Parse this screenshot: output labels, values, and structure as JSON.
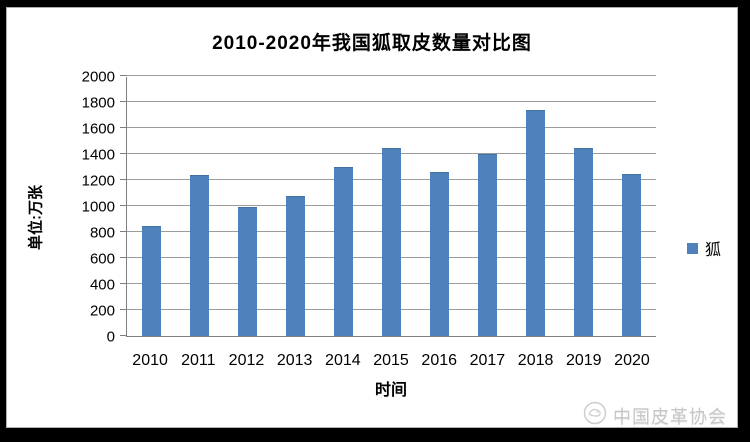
{
  "chart_data": {
    "type": "bar",
    "title": "2010-2020年我国狐取皮数量对比图",
    "xlabel": "时间",
    "ylabel": "单位:万张",
    "categories": [
      "2010",
      "2011",
      "2012",
      "2013",
      "2014",
      "2015",
      "2016",
      "2017",
      "2018",
      "2019",
      "2020"
    ],
    "series": [
      {
        "name": "狐",
        "values": [
          845,
          1240,
          990,
          1080,
          1300,
          1450,
          1265,
          1400,
          1735,
          1445,
          1250
        ]
      }
    ],
    "ylim": [
      0,
      2000
    ],
    "ytick_step": 200,
    "grid": true,
    "legend_position": "right",
    "bar_color": "#4f81bd",
    "gridline_color": "#9b9b9b",
    "axis_color": "#7f7f7f"
  },
  "legend": {
    "label": "狐",
    "marker_color": "#4f81bd"
  },
  "watermark": {
    "text": "中国皮革协会",
    "icon": "china-leather-association-logo",
    "color": "#c7c7c7"
  },
  "frame": {
    "background": "#000000",
    "panel_background": "#ffffff"
  }
}
